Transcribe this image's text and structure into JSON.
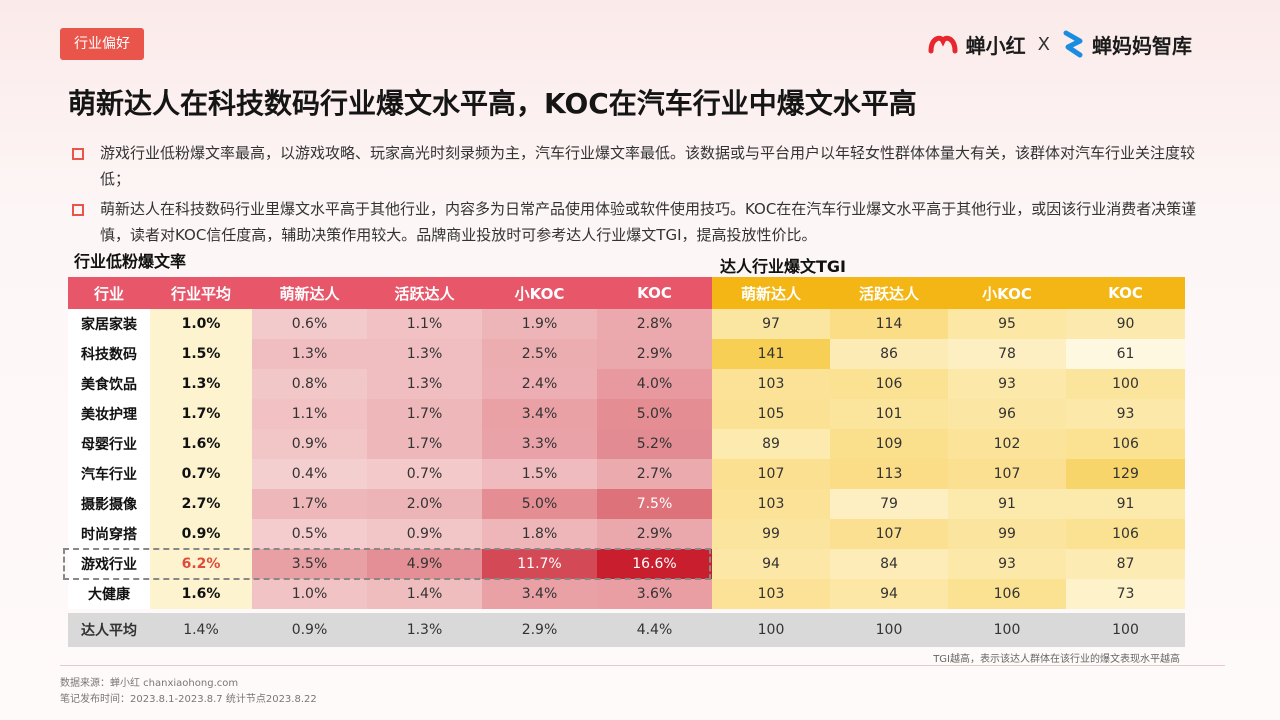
{
  "tag": "行业偏好",
  "brand": {
    "name1": "蝉小红",
    "sep": "X",
    "name2": "蝉妈妈智库"
  },
  "title": "萌新达人在科技数码行业爆文水平高，KOC在汽车行业中爆文水平高",
  "bullets": [
    "游戏行业低粉爆文率最高，以游戏攻略、玩家高光时刻录频为主，汽车行业爆文率最低。该数据或与平台用户以年轻女性群体体量大有关，该群体对汽车行业关注度较低；",
    "萌新达人在科技数码行业里爆文水平高于其他行业，内容多为日常产品使用体验或软件使用技巧。KOC在在汽车行业爆文水平高于其他行业，或因该行业消费者决策谨慎，读者对KOC信任度高，辅助决策作用较大。品牌商业投放时可参考达人行业爆文TGI，提高投放性价比。"
  ],
  "left_label": "行业低粉爆文率",
  "right_label": "达人行业爆文TGI",
  "colors": {
    "rate_base": "#f7dada",
    "rate_deep": "#c81e2e",
    "tgi_low": "#fff8e0",
    "tgi_high": "#f7cf55"
  },
  "table": {
    "headers": [
      "行业",
      "行业平均",
      "萌新达人",
      "活跃达人",
      "小KOC",
      "KOC",
      "萌新达人",
      "活跃达人",
      "小KOC",
      "KOC"
    ],
    "rows": [
      {
        "industry": "家居家装",
        "avg": "1.0%",
        "rates": [
          "0.6%",
          "1.1%",
          "1.9%",
          "2.8%"
        ],
        "tgi": [
          "97",
          "114",
          "95",
          "90"
        ]
      },
      {
        "industry": "科技数码",
        "avg": "1.5%",
        "rates": [
          "1.3%",
          "1.3%",
          "2.5%",
          "2.9%"
        ],
        "tgi": [
          "141",
          "86",
          "78",
          "61"
        ]
      },
      {
        "industry": "美食饮品",
        "avg": "1.3%",
        "rates": [
          "0.8%",
          "1.3%",
          "2.4%",
          "4.0%"
        ],
        "tgi": [
          "103",
          "106",
          "93",
          "100"
        ]
      },
      {
        "industry": "美妆护理",
        "avg": "1.7%",
        "rates": [
          "1.1%",
          "1.7%",
          "3.4%",
          "5.0%"
        ],
        "tgi": [
          "105",
          "101",
          "96",
          "93"
        ]
      },
      {
        "industry": "母婴行业",
        "avg": "1.6%",
        "rates": [
          "0.9%",
          "1.7%",
          "3.3%",
          "5.2%"
        ],
        "tgi": [
          "89",
          "109",
          "102",
          "106"
        ]
      },
      {
        "industry": "汽车行业",
        "avg": "0.7%",
        "rates": [
          "0.4%",
          "0.7%",
          "1.5%",
          "2.7%"
        ],
        "tgi": [
          "107",
          "113",
          "107",
          "129"
        ]
      },
      {
        "industry": "摄影摄像",
        "avg": "2.7%",
        "rates": [
          "1.7%",
          "2.0%",
          "5.0%",
          "7.5%"
        ],
        "tgi": [
          "103",
          "79",
          "91",
          "91"
        ]
      },
      {
        "industry": "时尚穿搭",
        "avg": "0.9%",
        "rates": [
          "0.5%",
          "0.9%",
          "1.8%",
          "2.9%"
        ],
        "tgi": [
          "99",
          "107",
          "99",
          "106"
        ]
      },
      {
        "industry": "游戏行业",
        "avg": "6.2%",
        "rates": [
          "3.5%",
          "4.9%",
          "11.7%",
          "16.6%"
        ],
        "tgi": [
          "94",
          "84",
          "93",
          "87"
        ],
        "highlight": true
      },
      {
        "industry": "大健康",
        "avg": "1.6%",
        "rates": [
          "1.0%",
          "1.4%",
          "3.4%",
          "3.6%"
        ],
        "tgi": [
          "103",
          "94",
          "106",
          "73"
        ]
      }
    ],
    "summary": {
      "industry": "达人平均",
      "avg": "1.4%",
      "rates": [
        "0.9%",
        "1.3%",
        "2.9%",
        "4.4%"
      ],
      "tgi": [
        "100",
        "100",
        "100",
        "100"
      ]
    }
  },
  "footnote": "TGI越高，表示该达人群体在该行业的爆文表现水平越高",
  "source": "数据来源：蝉小红 chanxiaohong.com",
  "release": "笔记发布时间：2023.8.1-2023.8.7 统计节点2023.8.22"
}
